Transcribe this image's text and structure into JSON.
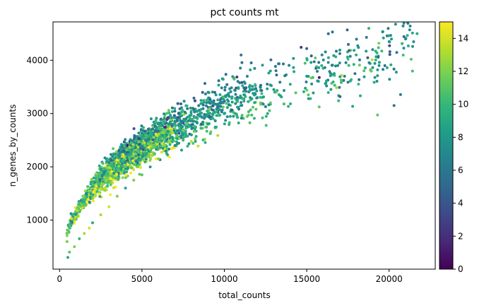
{
  "chart_data": {
    "type": "scatter",
    "title": "pct counts mt",
    "xlabel": "total_counts",
    "ylabel": "n_genes_by_counts",
    "xlim": [
      -400,
      22800
    ],
    "ylim": [
      80,
      4720
    ],
    "xticks": [
      0,
      5000,
      10000,
      15000,
      20000
    ],
    "yticks": [
      1000,
      2000,
      3000,
      4000
    ],
    "grid": false,
    "colormap": "viridis",
    "colorbar": {
      "min": 0,
      "max": 15,
      "ticks": [
        0,
        2,
        4,
        6,
        8,
        10,
        12,
        14
      ]
    },
    "colormap_stops": [
      "#440154",
      "#482878",
      "#3e4989",
      "#31688e",
      "#26828e",
      "#1f9e89",
      "#35b779",
      "#6ece58",
      "#b5de2b",
      "#fde725"
    ],
    "point_count_estimate": 2700,
    "trend_points": [
      {
        "x": 500,
        "y": 300,
        "c": 9
      },
      {
        "x": 600,
        "y": 400,
        "c": 11
      },
      {
        "x": 900,
        "y": 500,
        "c": 12
      },
      {
        "x": 1200,
        "y": 650,
        "c": 10
      },
      {
        "x": 1500,
        "y": 750,
        "c": 13
      },
      {
        "x": 1800,
        "y": 850,
        "c": 14
      },
      {
        "x": 2000,
        "y": 950,
        "c": 9
      },
      {
        "x": 2500,
        "y": 1100,
        "c": 13
      },
      {
        "x": 3000,
        "y": 1250,
        "c": 14
      },
      {
        "x": 3500,
        "y": 1450,
        "c": 12
      },
      {
        "x": 4000,
        "y": 1600,
        "c": 9
      },
      {
        "x": 4500,
        "y": 1750,
        "c": 12
      },
      {
        "x": 5000,
        "y": 1850,
        "c": 11
      },
      {
        "x": 5500,
        "y": 2000,
        "c": 8
      },
      {
        "x": 6000,
        "y": 2150,
        "c": 12
      },
      {
        "x": 6500,
        "y": 2250,
        "c": 9
      },
      {
        "x": 7000,
        "y": 2400,
        "c": 7
      },
      {
        "x": 7500,
        "y": 2500,
        "c": 10
      },
      {
        "x": 8000,
        "y": 2600,
        "c": 8
      },
      {
        "x": 9000,
        "y": 2800,
        "c": 8
      },
      {
        "x": 10000,
        "y": 3000,
        "c": 9
      },
      {
        "x": 11000,
        "y": 3150,
        "c": 8
      },
      {
        "x": 12000,
        "y": 3300,
        "c": 7
      },
      {
        "x": 13000,
        "y": 3450,
        "c": 8
      },
      {
        "x": 14000,
        "y": 3550,
        "c": 9
      },
      {
        "x": 15000,
        "y": 3700,
        "c": 8
      },
      {
        "x": 16000,
        "y": 3850,
        "c": 9
      },
      {
        "x": 17000,
        "y": 3950,
        "c": 8
      },
      {
        "x": 18000,
        "y": 4100,
        "c": 9
      },
      {
        "x": 19000,
        "y": 4200,
        "c": 7
      },
      {
        "x": 20000,
        "y": 4350,
        "c": 8
      },
      {
        "x": 21000,
        "y": 4400,
        "c": 7
      },
      {
        "x": 21700,
        "y": 4500,
        "c": 9
      },
      {
        "x": 20300,
        "y": 3150,
        "c": 6
      }
    ]
  }
}
